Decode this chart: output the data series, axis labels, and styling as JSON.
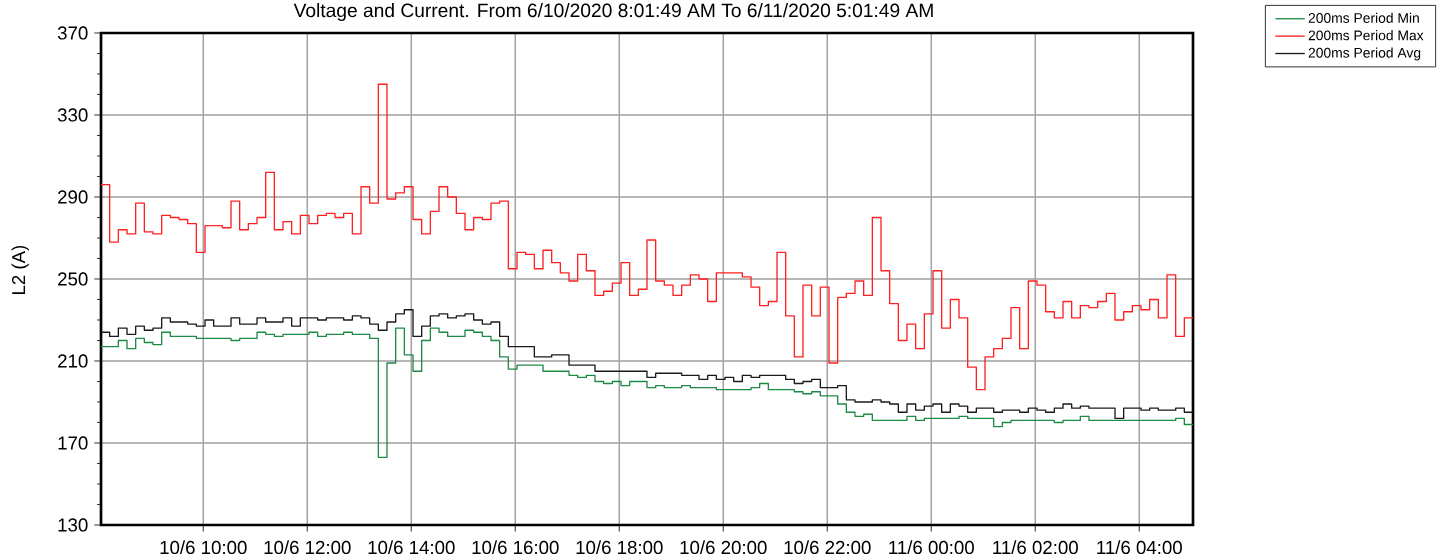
{
  "chart_data": {
    "type": "step",
    "title": "Voltage and Current. From 6/10/2020 8:01:49 AM To 6/11/2020 5:01:49 AM",
    "ylabel": "L2 (A)",
    "x": [
      "2020-06-10T08:02",
      "2020-06-10T08:12",
      "2020-06-10T08:22",
      "2020-06-10T08:32",
      "2020-06-10T08:42",
      "2020-06-10T08:52",
      "2020-06-10T09:02",
      "2020-06-10T09:12",
      "2020-06-10T09:22",
      "2020-06-10T09:32",
      "2020-06-10T09:42",
      "2020-06-10T09:52",
      "2020-06-10T10:02",
      "2020-06-10T10:12",
      "2020-06-10T10:22",
      "2020-06-10T10:32",
      "2020-06-10T10:42",
      "2020-06-10T10:52",
      "2020-06-10T11:02",
      "2020-06-10T11:12",
      "2020-06-10T11:22",
      "2020-06-10T11:32",
      "2020-06-10T11:42",
      "2020-06-10T11:52",
      "2020-06-10T12:02",
      "2020-06-10T12:12",
      "2020-06-10T12:22",
      "2020-06-10T12:32",
      "2020-06-10T12:42",
      "2020-06-10T12:52",
      "2020-06-10T13:02",
      "2020-06-10T13:12",
      "2020-06-10T13:22",
      "2020-06-10T13:32",
      "2020-06-10T13:42",
      "2020-06-10T13:52",
      "2020-06-10T14:02",
      "2020-06-10T14:12",
      "2020-06-10T14:22",
      "2020-06-10T14:32",
      "2020-06-10T14:42",
      "2020-06-10T14:52",
      "2020-06-10T15:02",
      "2020-06-10T15:12",
      "2020-06-10T15:22",
      "2020-06-10T15:32",
      "2020-06-10T15:42",
      "2020-06-10T15:52",
      "2020-06-10T16:02",
      "2020-06-10T16:12",
      "2020-06-10T16:22",
      "2020-06-10T16:32",
      "2020-06-10T16:42",
      "2020-06-10T16:52",
      "2020-06-10T17:02",
      "2020-06-10T17:12",
      "2020-06-10T17:22",
      "2020-06-10T17:32",
      "2020-06-10T17:42",
      "2020-06-10T17:52",
      "2020-06-10T18:02",
      "2020-06-10T18:12",
      "2020-06-10T18:22",
      "2020-06-10T18:32",
      "2020-06-10T18:42",
      "2020-06-10T18:52",
      "2020-06-10T19:02",
      "2020-06-10T19:12",
      "2020-06-10T19:22",
      "2020-06-10T19:32",
      "2020-06-10T19:42",
      "2020-06-10T19:52",
      "2020-06-10T20:02",
      "2020-06-10T20:12",
      "2020-06-10T20:22",
      "2020-06-10T20:32",
      "2020-06-10T20:42",
      "2020-06-10T20:52",
      "2020-06-10T21:02",
      "2020-06-10T21:12",
      "2020-06-10T21:22",
      "2020-06-10T21:32",
      "2020-06-10T21:42",
      "2020-06-10T21:52",
      "2020-06-10T22:02",
      "2020-06-10T22:12",
      "2020-06-10T22:22",
      "2020-06-10T22:32",
      "2020-06-10T22:42",
      "2020-06-10T22:52",
      "2020-06-10T23:02",
      "2020-06-10T23:12",
      "2020-06-10T23:22",
      "2020-06-10T23:32",
      "2020-06-10T23:42",
      "2020-06-10T23:52",
      "2020-06-11T00:02",
      "2020-06-11T00:12",
      "2020-06-11T00:22",
      "2020-06-11T00:32",
      "2020-06-11T00:42",
      "2020-06-11T00:52",
      "2020-06-11T01:02",
      "2020-06-11T01:12",
      "2020-06-11T01:22",
      "2020-06-11T01:32",
      "2020-06-11T01:42",
      "2020-06-11T01:52",
      "2020-06-11T02:02",
      "2020-06-11T02:12",
      "2020-06-11T02:22",
      "2020-06-11T02:32",
      "2020-06-11T02:42",
      "2020-06-11T02:52",
      "2020-06-11T03:02",
      "2020-06-11T03:12",
      "2020-06-11T03:22",
      "2020-06-11T03:32",
      "2020-06-11T03:42",
      "2020-06-11T03:52",
      "2020-06-11T04:02",
      "2020-06-11T04:12",
      "2020-06-11T04:22",
      "2020-06-11T04:32",
      "2020-06-11T04:42",
      "2020-06-11T04:52",
      "2020-06-11T05:02"
    ],
    "xlim": [
      "2020-06-10T08:02",
      "2020-06-11T05:02"
    ],
    "xticks": [
      {
        "value": "2020-06-10T10:00",
        "label": "10/6 10:00"
      },
      {
        "value": "2020-06-10T12:00",
        "label": "10/6 12:00"
      },
      {
        "value": "2020-06-10T14:00",
        "label": "10/6 14:00"
      },
      {
        "value": "2020-06-10T16:00",
        "label": "10/6 16:00"
      },
      {
        "value": "2020-06-10T18:00",
        "label": "10/6 18:00"
      },
      {
        "value": "2020-06-10T20:00",
        "label": "10/6 20:00"
      },
      {
        "value": "2020-06-10T22:00",
        "label": "10/6 22:00"
      },
      {
        "value": "2020-06-11T00:00",
        "label": "11/6 00:00"
      },
      {
        "value": "2020-06-11T02:00",
        "label": "11/6 02:00"
      },
      {
        "value": "2020-06-11T04:00",
        "label": "11/6 04:00"
      }
    ],
    "ylim": [
      130,
      370
    ],
    "yticks": [
      130,
      {
        "value": 140,
        "label": null
      },
      {
        "value": 150,
        "label": null
      },
      {
        "value": 160,
        "label": null
      },
      170,
      {
        "value": 180,
        "label": null
      },
      {
        "value": 190,
        "label": null
      },
      {
        "value": 200,
        "label": null
      },
      210,
      {
        "value": 220,
        "label": null
      },
      {
        "value": 230,
        "label": null
      },
      {
        "value": 240,
        "label": null
      },
      250,
      {
        "value": 260,
        "label": null
      },
      {
        "value": 270,
        "label": null
      },
      {
        "value": 280,
        "label": null
      },
      290,
      {
        "value": 300,
        "label": null
      },
      {
        "value": 310,
        "label": null
      },
      {
        "value": 320,
        "label": null
      },
      330,
      {
        "value": 340,
        "label": null
      },
      {
        "value": 350,
        "label": null
      },
      {
        "value": 360,
        "label": null
      },
      370
    ],
    "grid": true,
    "legend": "top right",
    "series": [
      {
        "name": "200ms Period Min",
        "color": "#1f8a45",
        "values": [
          217,
          217,
          220,
          216,
          221,
          219,
          218,
          224,
          222,
          222,
          222,
          221,
          221,
          221,
          221,
          220,
          221,
          221,
          224,
          223,
          222,
          223,
          223,
          223,
          224,
          222,
          223,
          223,
          224,
          223,
          223,
          221,
          163,
          209,
          226,
          213,
          205,
          220,
          226,
          224,
          222,
          222,
          225,
          224,
          222,
          220,
          212,
          206,
          208,
          208,
          208,
          205,
          205,
          205,
          203,
          202,
          203,
          200,
          199,
          200,
          198,
          200,
          200,
          197,
          198,
          197,
          197,
          198,
          197,
          197,
          197,
          196,
          196,
          196,
          196,
          197,
          199,
          196,
          196,
          196,
          195,
          194,
          195,
          193,
          193,
          189,
          185,
          183,
          184,
          181,
          181,
          181,
          181,
          183,
          181,
          182,
          182,
          182,
          182,
          183,
          182,
          182,
          182,
          178,
          180,
          181,
          181,
          181,
          181,
          181,
          180,
          181,
          181,
          183,
          181,
          181,
          181,
          181,
          181,
          181,
          181,
          181,
          181,
          181,
          182,
          179,
          179
        ]
      },
      {
        "name": "200ms Period Max",
        "color": "#ff2020",
        "values": [
          296,
          268,
          274,
          272,
          287,
          273,
          272,
          281,
          280,
          279,
          277,
          263,
          276,
          276,
          275,
          288,
          274,
          277,
          280,
          302,
          274,
          278,
          272,
          281,
          277,
          281,
          282,
          280,
          282,
          272,
          295,
          287,
          345,
          289,
          292,
          295,
          279,
          272,
          283,
          295,
          290,
          282,
          274,
          280,
          279,
          287,
          288,
          255,
          263,
          262,
          255,
          264,
          258,
          253,
          249,
          262,
          254,
          242,
          244,
          248,
          258,
          242,
          245,
          269,
          249,
          247,
          242,
          247,
          252,
          250,
          239,
          253,
          253,
          253,
          251,
          246,
          237,
          239,
          263,
          232,
          212,
          247,
          232,
          246,
          209,
          241,
          243,
          249,
          242,
          280,
          254,
          238,
          220,
          228,
          216,
          233,
          254,
          226,
          240,
          231,
          207,
          196,
          212,
          216,
          221,
          236,
          216,
          249,
          247,
          234,
          231,
          239,
          231,
          237,
          236,
          239,
          243,
          230,
          234,
          237,
          235,
          240,
          231,
          252,
          222,
          231,
          231
        ]
      },
      {
        "name": "200ms Period Avg",
        "color": "#1a1a1a",
        "values": [
          224,
          222,
          226,
          223,
          227,
          225,
          226,
          231,
          229,
          229,
          228,
          227,
          230,
          227,
          227,
          231,
          228,
          228,
          231,
          229,
          229,
          231,
          227,
          231,
          231,
          230,
          231,
          231,
          230,
          232,
          231,
          228,
          225,
          229,
          233,
          235,
          222,
          227,
          232,
          233,
          231,
          232,
          233,
          230,
          228,
          229,
          222,
          217,
          217,
          217,
          212,
          212,
          213,
          213,
          208,
          208,
          208,
          205,
          205,
          205,
          205,
          205,
          205,
          202,
          204,
          204,
          204,
          203,
          203,
          201,
          203,
          201,
          202,
          200,
          203,
          202,
          203,
          203,
          203,
          201,
          199,
          200,
          201,
          197,
          197,
          198,
          191,
          190,
          190,
          191,
          190,
          189,
          185,
          189,
          186,
          188,
          189,
          185,
          189,
          188,
          185,
          187,
          187,
          185,
          186,
          186,
          185,
          187,
          186,
          185,
          187,
          189,
          187,
          188,
          187,
          187,
          187,
          182,
          187,
          187,
          186,
          187,
          186,
          186,
          187,
          185,
          185
        ]
      }
    ]
  }
}
